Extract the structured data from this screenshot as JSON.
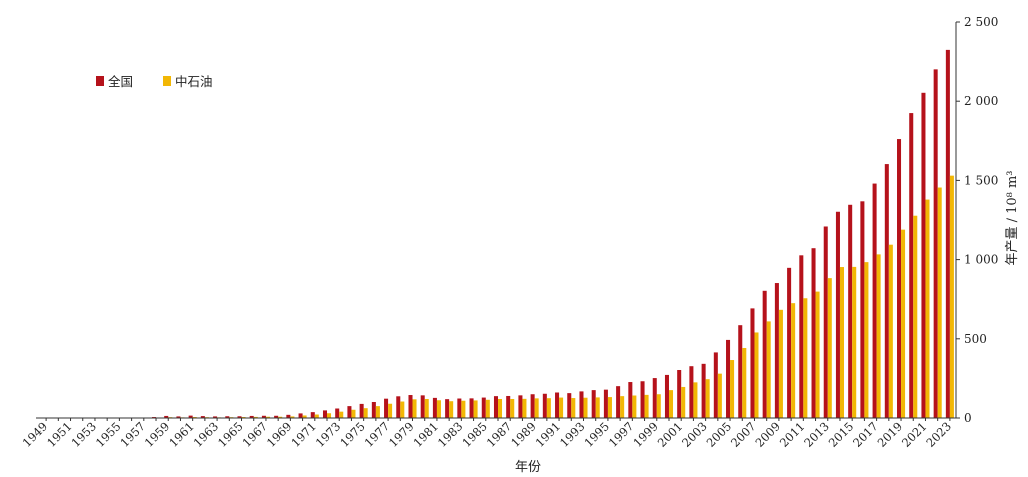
{
  "chart_data": {
    "type": "bar",
    "xlabel": "年份",
    "ylabel": "年产量 / 10⁸ m³",
    "y_axis_side": "right",
    "ylim": [
      0,
      2500
    ],
    "yticks": [
      0,
      500,
      1000,
      1500,
      2000,
      2500
    ],
    "ytick_labels": [
      "0",
      "500",
      "1 000",
      "1 500",
      "2 000",
      "2 500"
    ],
    "legend_position": "top-left",
    "grid": false,
    "categories": [
      1949,
      1950,
      1951,
      1952,
      1953,
      1954,
      1955,
      1956,
      1957,
      1958,
      1959,
      1960,
      1961,
      1962,
      1963,
      1964,
      1965,
      1966,
      1967,
      1968,
      1969,
      1970,
      1971,
      1972,
      1973,
      1974,
      1975,
      1976,
      1977,
      1978,
      1979,
      1980,
      1981,
      1982,
      1983,
      1984,
      1985,
      1986,
      1987,
      1988,
      1989,
      1990,
      1991,
      1992,
      1993,
      1994,
      1995,
      1996,
      1997,
      1998,
      1999,
      2000,
      2001,
      2002,
      2003,
      2004,
      2005,
      2006,
      2007,
      2008,
      2009,
      2010,
      2011,
      2012,
      2013,
      2014,
      2015,
      2016,
      2017,
      2018,
      2019,
      2020,
      2021,
      2022,
      2023
    ],
    "x_tick_labels": [
      "1949",
      "1951",
      "1953",
      "1955",
      "1957",
      "1959",
      "1961",
      "1963",
      "1965",
      "1967",
      "1969",
      "1971",
      "1973",
      "1975",
      "1977",
      "1979",
      "1981",
      "1983",
      "1985",
      "1987",
      "1989",
      "1991",
      "1993",
      "1995",
      "1997",
      "1999",
      "2001",
      "2003",
      "2005",
      "2007",
      "2009",
      "2011",
      "2013",
      "2015",
      "2017",
      "2019",
      "2021",
      "2023"
    ],
    "series": [
      {
        "name": "全国",
        "color": "#b5121b",
        "values": [
          0.1,
          0.1,
          0.2,
          0.3,
          0.5,
          0.7,
          0.9,
          1,
          3,
          6,
          13,
          10,
          15,
          12,
          10,
          11,
          11,
          13,
          14,
          14,
          20,
          29,
          37,
          48,
          60,
          75,
          89,
          101,
          122,
          137,
          145,
          143,
          127,
          119,
          123,
          124,
          129,
          138,
          139,
          143,
          150,
          153,
          161,
          157,
          168,
          176,
          179,
          201,
          227,
          232,
          252,
          272,
          303,
          327,
          342,
          414,
          493,
          586,
          692,
          803,
          852,
          948,
          1027,
          1072,
          1209,
          1302,
          1346,
          1368,
          1480,
          1603,
          1761,
          1925,
          2053,
          2201,
          2324
        ]
      },
      {
        "name": "中石油",
        "color": "#f2b705",
        "values": [
          0,
          0,
          0,
          0,
          0,
          0,
          0,
          0,
          1,
          2,
          5,
          4,
          6,
          5,
          4,
          5,
          6,
          7,
          8,
          8,
          10,
          16,
          22,
          30,
          40,
          52,
          62,
          75,
          90,
          104,
          118,
          120,
          112,
          106,
          109,
          111,
          115,
          120,
          120,
          121,
          124,
          125,
          129,
          126,
          128,
          130,
          132,
          138,
          142,
          146,
          150,
          176,
          196,
          225,
          245,
          280,
          366,
          442,
          540,
          610,
          683,
          725,
          756,
          798,
          883,
          953,
          954,
          984,
          1033,
          1094,
          1189,
          1277,
          1379,
          1455,
          1530
        ]
      }
    ]
  }
}
